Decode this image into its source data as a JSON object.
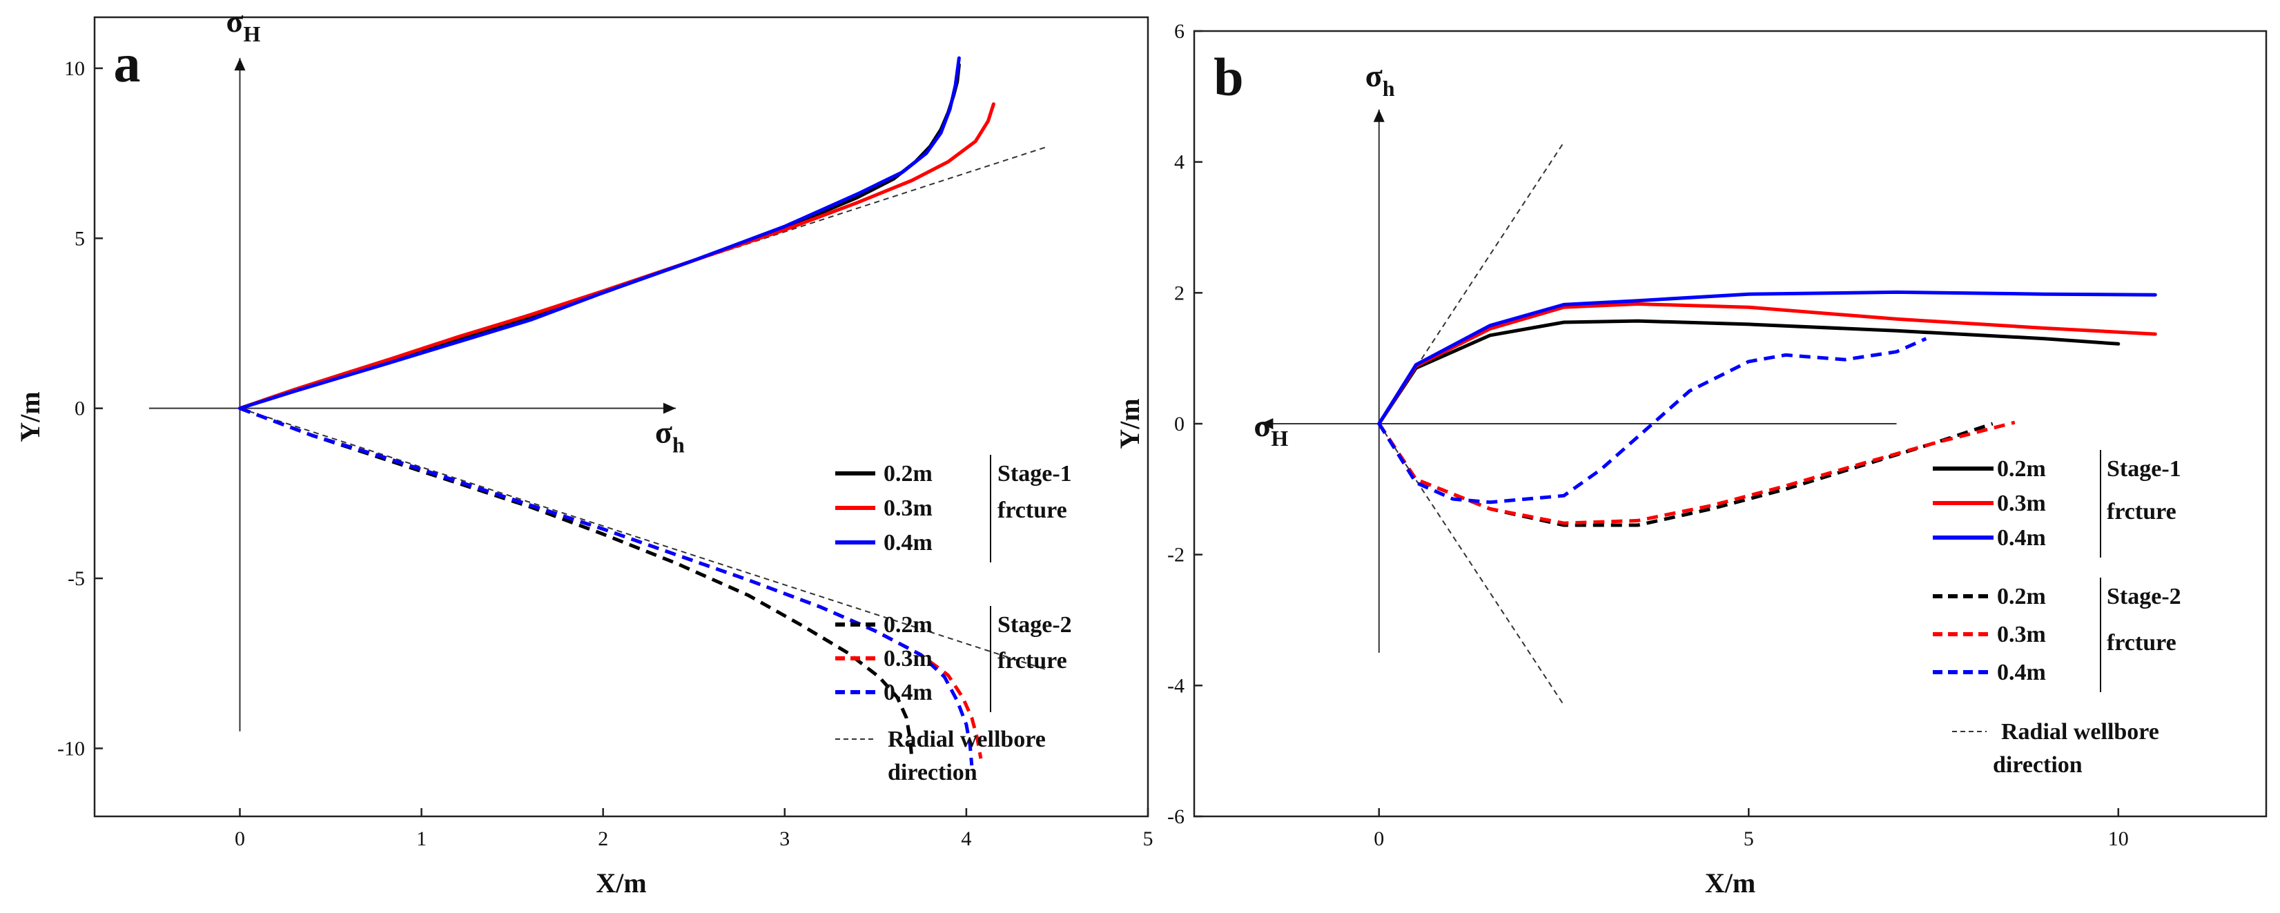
{
  "chart_data": [
    {
      "panel": "a",
      "type": "line",
      "xlabel": "X/m",
      "ylabel": "Y/m",
      "xlim": [
        -0.8,
        5
      ],
      "ylim": [
        -12,
        11.5
      ],
      "xticks": [
        0,
        1,
        2,
        3,
        4,
        5
      ],
      "yticks": [
        -10,
        -5,
        0,
        5,
        10
      ],
      "stress_axes": {
        "vertical": {
          "label": "σ",
          "sub": "H",
          "from": [
            0,
            -9.5
          ],
          "to": [
            0,
            10.3
          ]
        },
        "horizontal": {
          "label": "σ",
          "sub": "h",
          "from": [
            -0.5,
            0
          ],
          "to": [
            2.4,
            0
          ]
        }
      },
      "radial_lines": [
        {
          "x": [
            0,
            4.45
          ],
          "y": [
            0,
            7.7
          ]
        },
        {
          "x": [
            0,
            4.45
          ],
          "y": [
            0,
            -7.7
          ]
        }
      ],
      "series": [
        {
          "name": "0.2m",
          "stage": "Stage-1",
          "color": "#000000",
          "dash": "solid",
          "x": [
            0,
            0.3,
            0.8,
            1.2,
            1.6,
            2.0,
            2.5,
            3.0,
            3.4,
            3.6,
            3.72,
            3.8,
            3.86,
            3.9,
            3.93,
            3.95,
            3.96
          ],
          "y": [
            0,
            0.55,
            1.4,
            2.05,
            2.7,
            3.4,
            4.35,
            5.3,
            6.2,
            6.75,
            7.25,
            7.7,
            8.2,
            8.7,
            9.2,
            9.6,
            10.1
          ]
        },
        {
          "name": "0.3m",
          "stage": "Stage-1",
          "color": "#ff0000",
          "dash": "solid",
          "x": [
            0,
            0.3,
            0.8,
            1.2,
            1.6,
            2.0,
            2.5,
            3.0,
            3.4,
            3.7,
            3.9,
            4.05,
            4.12,
            4.15
          ],
          "y": [
            0,
            0.55,
            1.4,
            2.1,
            2.75,
            3.45,
            4.35,
            5.25,
            6.05,
            6.7,
            7.25,
            7.85,
            8.45,
            8.95
          ]
        },
        {
          "name": "0.4m",
          "stage": "Stage-1",
          "color": "#0000ff",
          "dash": "solid",
          "x": [
            0,
            0.3,
            0.8,
            1.2,
            1.6,
            2.0,
            2.5,
            3.0,
            3.4,
            3.65,
            3.78,
            3.86,
            3.91,
            3.94,
            3.96
          ],
          "y": [
            0,
            0.5,
            1.3,
            1.95,
            2.6,
            3.4,
            4.35,
            5.35,
            6.3,
            6.95,
            7.5,
            8.1,
            8.8,
            9.5,
            10.3
          ]
        },
        {
          "name": "0.2m",
          "stage": "Stage-2",
          "color": "#000000",
          "dash": "dashed",
          "x": [
            0,
            0.4,
            0.8,
            1.2,
            1.6,
            2.0,
            2.4,
            2.8,
            3.1,
            3.35,
            3.52,
            3.62,
            3.67,
            3.69,
            3.7
          ],
          "y": [
            0,
            -0.8,
            -1.5,
            -2.2,
            -2.9,
            -3.7,
            -4.55,
            -5.5,
            -6.4,
            -7.2,
            -7.9,
            -8.5,
            -9.1,
            -9.7,
            -10.3
          ]
        },
        {
          "name": "0.3m",
          "stage": "Stage-2",
          "color": "#ff0000",
          "dash": "dashed",
          "x": [
            0,
            0.4,
            0.8,
            1.2,
            1.6,
            2.0,
            2.4,
            2.8,
            3.2,
            3.5,
            3.75,
            3.9,
            3.98,
            4.03,
            4.06,
            4.08
          ],
          "y": [
            0,
            -0.8,
            -1.45,
            -2.15,
            -2.85,
            -3.55,
            -4.3,
            -5.05,
            -5.85,
            -6.55,
            -7.25,
            -7.85,
            -8.5,
            -9.1,
            -9.7,
            -10.3
          ]
        },
        {
          "name": "0.4m",
          "stage": "Stage-2",
          "color": "#0000ff",
          "dash": "dashed",
          "x": [
            0,
            0.4,
            0.8,
            1.2,
            1.6,
            2.0,
            2.4,
            2.8,
            3.2,
            3.5,
            3.75,
            3.88,
            3.95,
            4.0,
            4.02,
            4.03
          ],
          "y": [
            0,
            -0.8,
            -1.45,
            -2.15,
            -2.85,
            -3.55,
            -4.3,
            -5.05,
            -5.85,
            -6.55,
            -7.25,
            -7.9,
            -8.6,
            -9.3,
            -9.9,
            -10.5
          ]
        }
      ],
      "legend": {
        "groups": [
          {
            "title_top": "Stage-1",
            "title_bottom": "frcture",
            "entries": [
              {
                "label": "0.2m",
                "color": "#000000",
                "dash": "solid"
              },
              {
                "label": "0.3m",
                "color": "#ff0000",
                "dash": "solid"
              },
              {
                "label": "0.4m",
                "color": "#0000ff",
                "dash": "solid"
              }
            ]
          },
          {
            "title_top": "Stage-2",
            "title_bottom": "frcture",
            "entries": [
              {
                "label": "0.2m",
                "color": "#000000",
                "dash": "dashed"
              },
              {
                "label": "0.3m",
                "color": "#ff0000",
                "dash": "dashed"
              },
              {
                "label": "0.4m",
                "color": "#0000ff",
                "dash": "dashed"
              }
            ]
          }
        ],
        "extra_line1": "Radial wellbore",
        "extra_line2": "direction"
      }
    },
    {
      "panel": "b",
      "type": "line",
      "xlabel": "X/m",
      "ylabel": "Y/m",
      "xlim": [
        -2.5,
        12
      ],
      "ylim": [
        -6,
        6
      ],
      "xticks": [
        0,
        5,
        10
      ],
      "yticks": [
        -6,
        -4,
        -2,
        0,
        2,
        4,
        6
      ],
      "stress_axes": {
        "vertical": {
          "label": "σ",
          "sub": "h",
          "from": [
            0,
            -3.5
          ],
          "to": [
            0,
            4.8
          ]
        },
        "horizontal": {
          "label": "σ",
          "sub": "H",
          "from": [
            7,
            0
          ],
          "to": [
            -1.6,
            0
          ]
        }
      },
      "radial_lines": [
        {
          "x": [
            0,
            2.5
          ],
          "y": [
            0,
            4.3
          ]
        },
        {
          "x": [
            0,
            2.5
          ],
          "y": [
            0,
            -4.3
          ]
        }
      ],
      "series": [
        {
          "name": "0.2m",
          "stage": "Stage-1",
          "color": "#000000",
          "dash": "solid",
          "x": [
            0,
            0.5,
            1.5,
            2.5,
            3.5,
            5,
            7,
            9,
            10
          ],
          "y": [
            0,
            0.85,
            1.35,
            1.55,
            1.57,
            1.52,
            1.42,
            1.3,
            1.22
          ]
        },
        {
          "name": "0.3m",
          "stage": "Stage-1",
          "color": "#ff0000",
          "dash": "solid",
          "x": [
            0,
            0.5,
            1.5,
            2.5,
            3.5,
            5,
            7,
            9,
            10.5
          ],
          "y": [
            0,
            0.88,
            1.45,
            1.78,
            1.83,
            1.78,
            1.6,
            1.46,
            1.37
          ]
        },
        {
          "name": "0.4m",
          "stage": "Stage-1",
          "color": "#0000ff",
          "dash": "solid",
          "x": [
            0,
            0.5,
            1.5,
            2.5,
            3.5,
            5,
            7,
            9,
            10.5
          ],
          "y": [
            0,
            0.9,
            1.5,
            1.82,
            1.88,
            1.98,
            2.01,
            1.98,
            1.97
          ]
        },
        {
          "name": "0.2m",
          "stage": "Stage-2",
          "color": "#000000",
          "dash": "dashed",
          "x": [
            0,
            0.5,
            1.5,
            2.5,
            3.5,
            4.5,
            5.5,
            6.5,
            7.5,
            8.3
          ],
          "y": [
            0,
            -0.85,
            -1.3,
            -1.55,
            -1.55,
            -1.3,
            -1.0,
            -0.65,
            -0.3,
            0
          ]
        },
        {
          "name": "0.3m",
          "stage": "Stage-2",
          "color": "#ff0000",
          "dash": "dashed",
          "x": [
            0,
            0.5,
            1.5,
            2.5,
            3.5,
            4.5,
            5.5,
            6.5,
            7.5,
            8.6
          ],
          "y": [
            0,
            -0.85,
            -1.3,
            -1.52,
            -1.48,
            -1.25,
            -0.95,
            -0.62,
            -0.3,
            0.02
          ]
        },
        {
          "name": "0.4m",
          "stage": "Stage-2",
          "color": "#0000ff",
          "dash": "dashed",
          "x": [
            0,
            0.5,
            1.0,
            1.5,
            2.5,
            3.0,
            3.5,
            4.2,
            5.0,
            5.5,
            6.3,
            7.0,
            7.4
          ],
          "y": [
            0,
            -0.9,
            -1.15,
            -1.2,
            -1.1,
            -0.7,
            -0.2,
            0.5,
            0.95,
            1.05,
            0.98,
            1.1,
            1.3
          ]
        }
      ],
      "legend": {
        "groups": [
          {
            "title_top": "Stage-1",
            "title_bottom": "frcture",
            "entries": [
              {
                "label": "0.2m",
                "color": "#000000",
                "dash": "solid"
              },
              {
                "label": "0.3m",
                "color": "#ff0000",
                "dash": "solid"
              },
              {
                "label": "0.4m",
                "color": "#0000ff",
                "dash": "solid"
              }
            ]
          },
          {
            "title_top": "Stage-2",
            "title_bottom": "frcture",
            "entries": [
              {
                "label": "0.2m",
                "color": "#000000",
                "dash": "dashed"
              },
              {
                "label": "0.3m",
                "color": "#ff0000",
                "dash": "dashed"
              },
              {
                "label": "0.4m",
                "color": "#0000ff",
                "dash": "dashed"
              }
            ]
          }
        ],
        "extra_line1": "Radial wellbore",
        "extra_line2": "direction"
      }
    }
  ]
}
